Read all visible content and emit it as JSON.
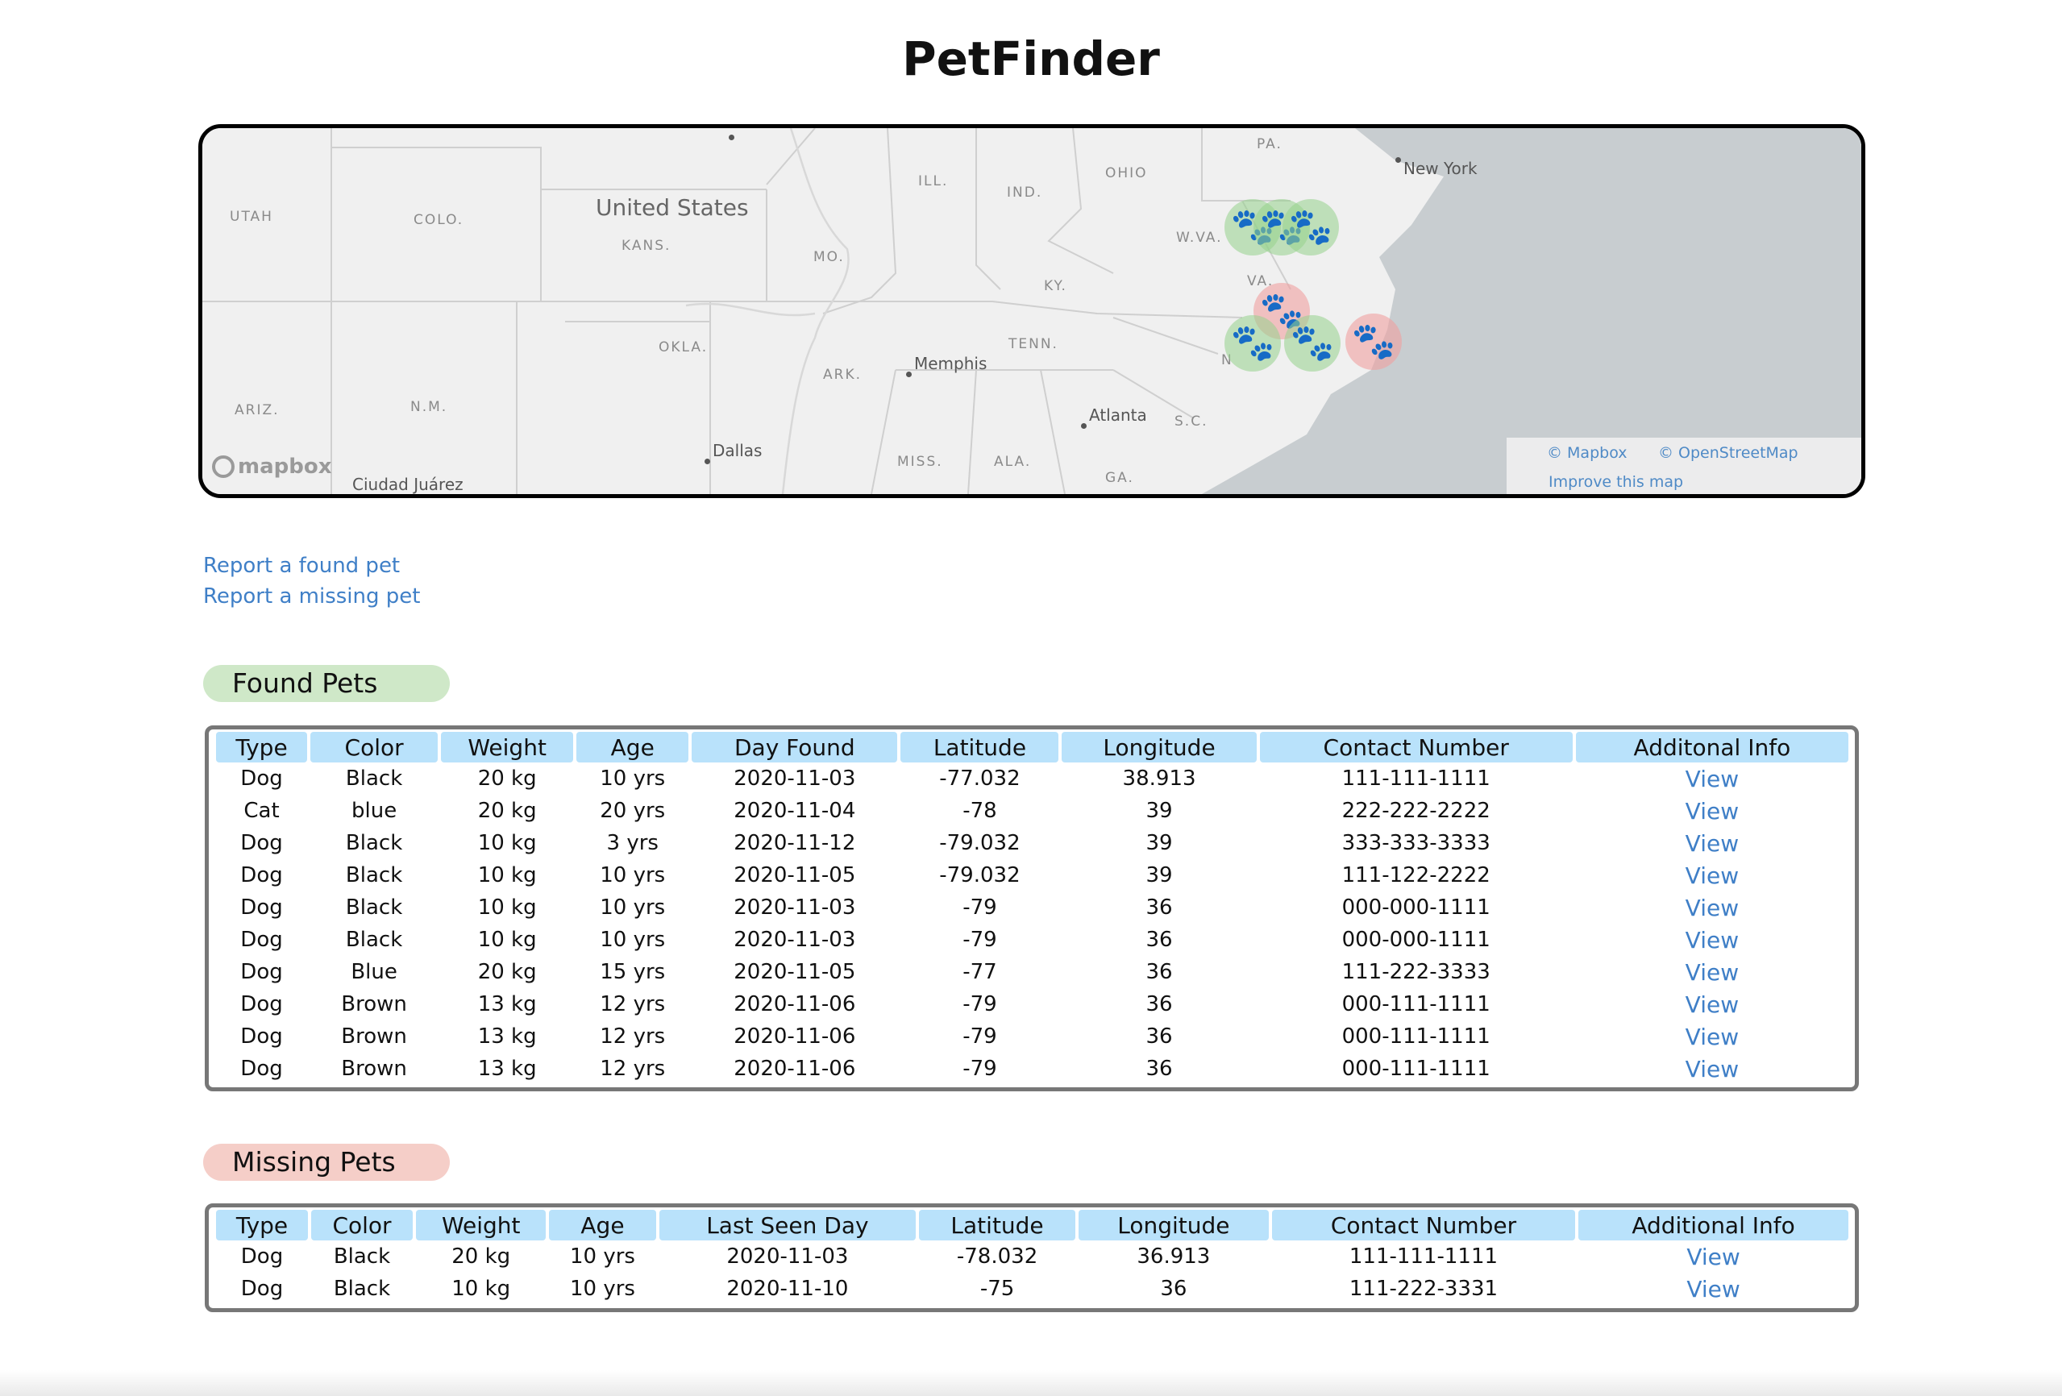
{
  "title": "PetFinder",
  "map": {
    "labels": {
      "utah": "UTAH",
      "colo": "COLO.",
      "kans": "KANS.",
      "mo": "MO.",
      "ill": "ILL.",
      "ind": "IND.",
      "ohio": "OHIO",
      "pa": "PA.",
      "wva": "W.VA.",
      "va": "VA.",
      "ky": "KY.",
      "tenn": "TENN.",
      "okla": "OKLA.",
      "ark": "ARK.",
      "ariz": "ARIZ.",
      "nm": "N.M.",
      "miss": "MISS.",
      "ala": "ALA.",
      "ga": "GA.",
      "sc": "S.C.",
      "n": "N"
    },
    "country": "United States",
    "cities": {
      "new_york": "New York",
      "memphis": "Memphis",
      "atlanta": "Atlanta",
      "dallas": "Dallas",
      "ciudad_juarez": "Ciudad Juárez"
    },
    "logo": "mapbox",
    "attribution": {
      "mapbox": "© Mapbox",
      "osm": "© OpenStreetMap",
      "improve": "Improve this map"
    },
    "colors": {
      "water": "#c8cdd0",
      "land": "#f0f0f0",
      "found_marker": "#4cb84c",
      "missing_marker": "#d9534f"
    },
    "marker_icon": "paw-icon"
  },
  "links": {
    "report_found": "Report a found pet",
    "report_missing": "Report a missing pet"
  },
  "found": {
    "heading": "Found Pets",
    "columns": [
      "Type",
      "Color",
      "Weight",
      "Age",
      "Day Found",
      "Latitude",
      "Longitude",
      "Contact Number",
      "Additonal Info"
    ],
    "rows": [
      [
        "Dog",
        "Black",
        "20 kg",
        "10 yrs",
        "2020-11-03",
        "-77.032",
        "38.913",
        "111-111-1111",
        "View"
      ],
      [
        "Cat",
        "blue",
        "20 kg",
        "20 yrs",
        "2020-11-04",
        "-78",
        "39",
        "222-222-2222",
        "View"
      ],
      [
        "Dog",
        "Black",
        "10 kg",
        "3 yrs",
        "2020-11-12",
        "-79.032",
        "39",
        "333-333-3333",
        "View"
      ],
      [
        "Dog",
        "Black",
        "10 kg",
        "10 yrs",
        "2020-11-05",
        "-79.032",
        "39",
        "111-122-2222",
        "View"
      ],
      [
        "Dog",
        "Black",
        "10 kg",
        "10 yrs",
        "2020-11-03",
        "-79",
        "36",
        "000-000-1111",
        "View"
      ],
      [
        "Dog",
        "Black",
        "10 kg",
        "10 yrs",
        "2020-11-03",
        "-79",
        "36",
        "000-000-1111",
        "View"
      ],
      [
        "Dog",
        "Blue",
        "20 kg",
        "15 yrs",
        "2020-11-05",
        "-77",
        "36",
        "111-222-3333",
        "View"
      ],
      [
        "Dog",
        "Brown",
        "13 kg",
        "12 yrs",
        "2020-11-06",
        "-79",
        "36",
        "000-111-1111",
        "View"
      ],
      [
        "Dog",
        "Brown",
        "13 kg",
        "12 yrs",
        "2020-11-06",
        "-79",
        "36",
        "000-111-1111",
        "View"
      ],
      [
        "Dog",
        "Brown",
        "13 kg",
        "12 yrs",
        "2020-11-06",
        "-79",
        "36",
        "000-111-1111",
        "View"
      ]
    ]
  },
  "missing": {
    "heading": "Missing Pets",
    "columns": [
      "Type",
      "Color",
      "Weight",
      "Age",
      "Last Seen Day",
      "Latitude",
      "Longitude",
      "Contact Number",
      "Additional Info"
    ],
    "rows": [
      [
        "Dog",
        "Black",
        "20 kg",
        "10 yrs",
        "2020-11-03",
        "-78.032",
        "36.913",
        "111-111-1111",
        "View"
      ],
      [
        "Dog",
        "Black",
        "10 kg",
        "10 yrs",
        "2020-11-10",
        "-75",
        "36",
        "111-222-3331",
        "View"
      ]
    ]
  }
}
